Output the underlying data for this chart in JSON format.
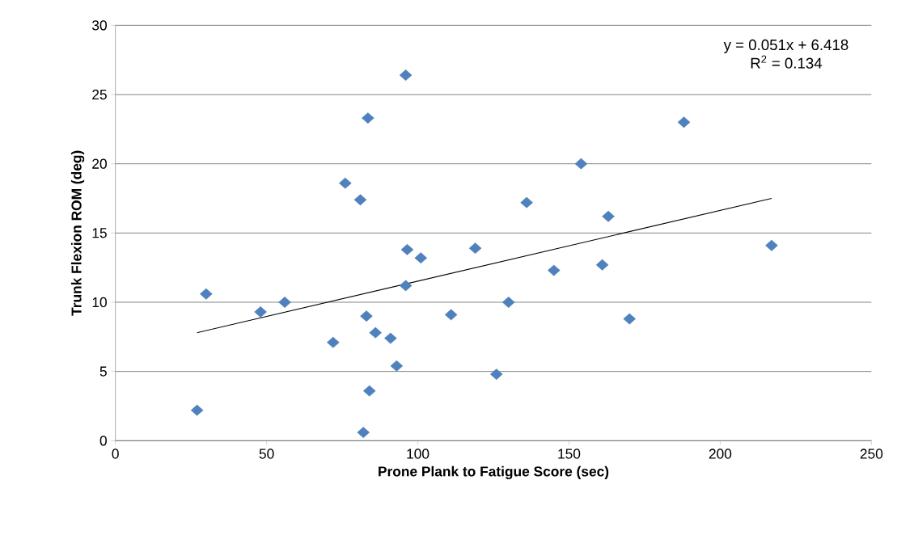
{
  "chart_data": {
    "type": "scatter",
    "xlabel": "Prone Plank to Fatigue Score (sec)",
    "ylabel": "Trunk Flexion ROM (deg)",
    "xlim": [
      0,
      250
    ],
    "ylim": [
      0,
      30
    ],
    "xticks": [
      0,
      50,
      100,
      150,
      200,
      250
    ],
    "yticks": [
      0,
      5,
      10,
      15,
      20,
      25,
      30
    ],
    "grid": "y",
    "marker": "diamond",
    "series": [
      {
        "color": "#4f81bd",
        "x": [
          27,
          30,
          48,
          56,
          72,
          76,
          81,
          82,
          83,
          83.5,
          84,
          86,
          91,
          93,
          96,
          96,
          96.5,
          101,
          111,
          119,
          126,
          130,
          136,
          145,
          154,
          161,
          163,
          170,
          188,
          217
        ],
        "values": [
          2.2,
          10.6,
          9.3,
          10,
          7.1,
          18.6,
          17.4,
          0.6,
          9,
          23.3,
          3.6,
          7.8,
          7.4,
          5.4,
          26.4,
          11.2,
          13.8,
          13.2,
          9.1,
          13.9,
          4.8,
          10,
          17.2,
          12.3,
          20,
          12.7,
          16.2,
          8.8,
          23,
          14.1
        ]
      },
      {
        "type": "line",
        "color": "#000000",
        "marker": "none",
        "x": [
          27,
          217
        ],
        "values": [
          7.8,
          17.5
        ]
      }
    ],
    "annotations": [
      "y = 0.051x + 6.418",
      "R$^{2}$ = 0.134"
    ]
  }
}
